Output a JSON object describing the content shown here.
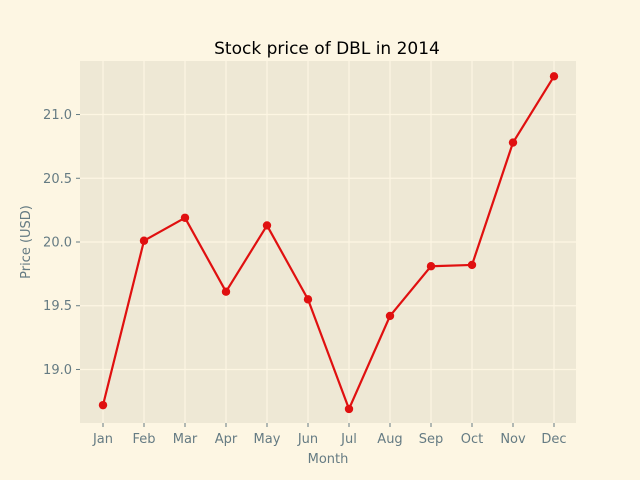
{
  "chart_data": {
    "type": "line",
    "title": "Stock price of DBL in 2014",
    "xlabel": "Month",
    "ylabel": "Price (USD)",
    "categories": [
      "Jan",
      "Feb",
      "Mar",
      "Apr",
      "May",
      "Jun",
      "Jul",
      "Aug",
      "Sep",
      "Oct",
      "Nov",
      "Dec"
    ],
    "series": [
      {
        "values": [
          18.72,
          20.01,
          20.19,
          19.61,
          20.13,
          19.55,
          18.69,
          19.42,
          19.81,
          19.82,
          20.78,
          21.3
        ]
      }
    ],
    "ylim": [
      18.58,
      21.42
    ],
    "yticks": [
      "19.0",
      "19.5",
      "20.0",
      "20.5",
      "21.0"
    ],
    "grid": true,
    "colors": {
      "line": "#e01010",
      "plot_background": "#eee8d5",
      "figure_background": "#fdf6e3",
      "grid": "#fdf6e3",
      "tick_text": "#657b83"
    }
  }
}
